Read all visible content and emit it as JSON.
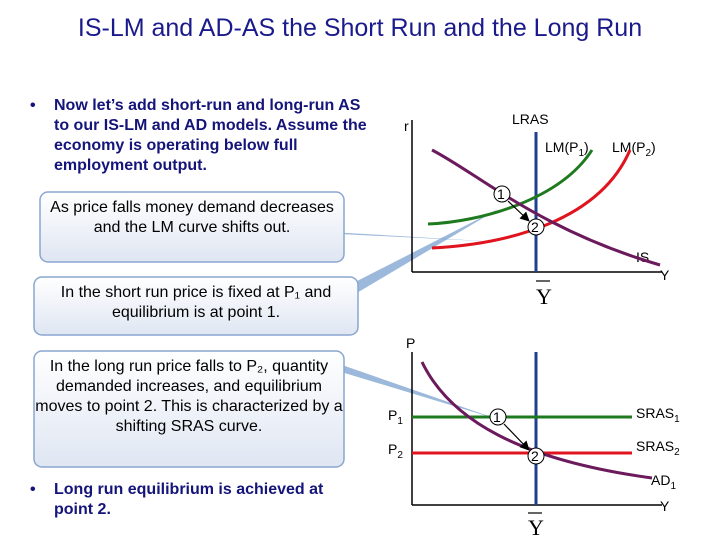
{
  "title": "IS-LM and AD-AS the Short Run and the Long Run",
  "bullets": [
    "Now let’s add short-run and long-run AS to our IS-LM and AD models. Assume the economy is operating below full employment output.",
    "Long run equilibrium is achieved at point 2."
  ],
  "callouts": [
    "As price falls money demand decreases and the LM curve shifts out.",
    "In the short run price is fixed at P₁ and equilibrium is at point 1.",
    "In the long run price falls to P₂, quantity demanded increases, and equilibrium moves to point 2.  This is characterized by a shifting SRAS curve."
  ],
  "islm": {
    "y_axis": "r",
    "x_axis": "Y",
    "lras": "LRAS",
    "lm1": "LM(P",
    "lm1_sub": "1",
    "lm2": "LM(P",
    "lm2_sub": "2",
    "is": "IS",
    "point1": "1",
    "point2": "2",
    "ybar": "Y"
  },
  "adas": {
    "y_axis": "P",
    "x_axis": "Y",
    "p1": "P",
    "p1_sub": "1",
    "p2": "P",
    "p2_sub": "2",
    "sras1": "SRAS",
    "sras1_sub": "1",
    "sras2": "SRAS",
    "sras2_sub": "2",
    "ad": "AD",
    "ad_sub": "1",
    "point1": "1",
    "point2": "2",
    "ybar": "Y"
  },
  "colors": {
    "title": "#1a1a8c",
    "lras": "#1f3f8f",
    "lm1": "#1f7a1f",
    "lm2": "#e0141e",
    "is_ad": "#6b1a5c",
    "callout_fill": "#1e6db0"
  }
}
